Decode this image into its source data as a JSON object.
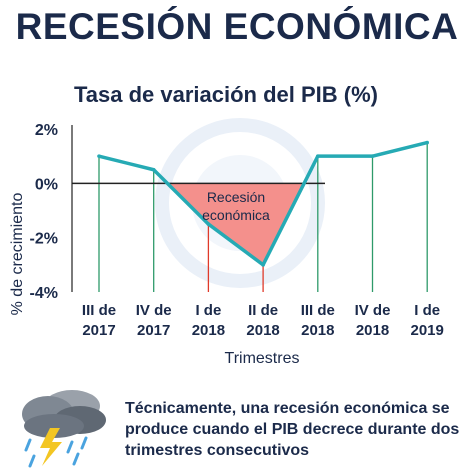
{
  "header": {
    "title": "RECESIÓN ECONÓMICA"
  },
  "chart_data": {
    "type": "line",
    "title": "Tasa de variación del PIB (%)",
    "xlabel": "Trimestres",
    "ylabel": "% de crecimiento",
    "categories": [
      [
        "III de",
        "2017"
      ],
      [
        "IV de",
        "2017"
      ],
      [
        "I de",
        "2018"
      ],
      [
        "II de",
        "2018"
      ],
      [
        "III de",
        "2018"
      ],
      [
        "IV de",
        "2018"
      ],
      [
        "I de",
        "2019"
      ]
    ],
    "values": [
      1.0,
      0.5,
      -1.5,
      -3.0,
      1.0,
      1.0,
      1.5
    ],
    "ylim": [
      -4,
      2
    ],
    "yticks": [
      2,
      0,
      -2,
      -4
    ],
    "ytick_labels": [
      "2%",
      "0%",
      "-2%",
      "-4%"
    ],
    "recession_label": [
      "Recesión",
      "económica"
    ],
    "colors": {
      "line": "#26aab4",
      "growth_drop": "#2e9a6a",
      "recession_drop": "#e03a2a",
      "recession_fill": "#f38a86",
      "axis": "#222222"
    }
  },
  "footer": {
    "note": "Técnicamente, una recesión económica se produce cuando el PIB decrece durante dos trimestres consecutivos",
    "icon": "storm-cloud-icon"
  }
}
